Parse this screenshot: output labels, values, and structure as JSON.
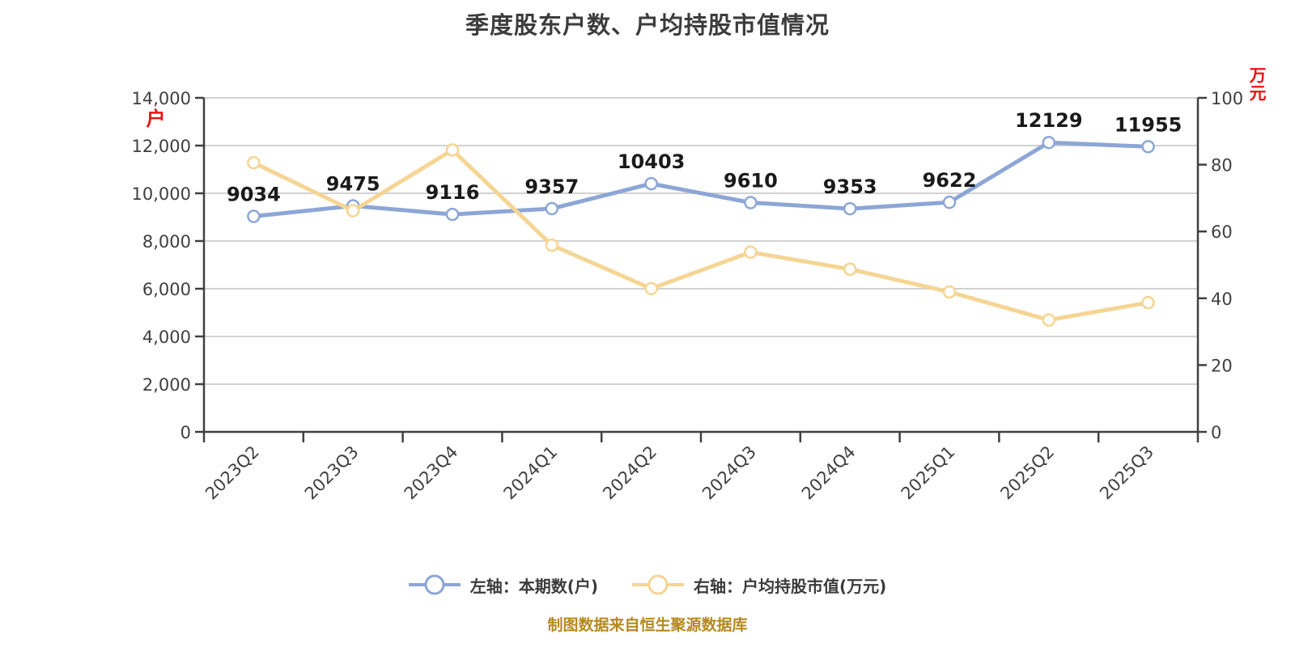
{
  "title": "季度股东户数、户均持股市值情况",
  "source_note": "制图数据来自恒生聚源数据库",
  "colors": {
    "series_left_blue": "#8CA6D6",
    "series_right_yellow": "#F5D593",
    "axis_unit_red": "#EE1111",
    "source_note_gold": "#B5891D",
    "axis_text": "#404040",
    "data_label": "#1A1A1A",
    "gridline": "#D2D2D2",
    "axis_line": "#404040",
    "marker_fill": "#FFFFFF"
  },
  "chart_data": {
    "type": "line",
    "title": "季度股东户数、户均持股市值情况",
    "categories": [
      "2023Q2",
      "2023Q3",
      "2023Q4",
      "2024Q1",
      "2024Q2",
      "2024Q3",
      "2024Q4",
      "2025Q1",
      "2025Q2",
      "2025Q3"
    ],
    "series": [
      {
        "name": "左轴：本期数(户)",
        "axis": "left",
        "color": "#8CA6D6",
        "marker": "circle-white",
        "data_labels": true,
        "values": [
          9034,
          9475,
          9116,
          9357,
          10403,
          9610,
          9353,
          9622,
          12129,
          11955
        ]
      },
      {
        "name": "右轴：户均持股市值(万元)",
        "axis": "right",
        "color": "#F5D593",
        "marker": "circle-white",
        "data_labels": false,
        "values": [
          80.6,
          66.2,
          84.4,
          55.9,
          42.9,
          53.8,
          48.7,
          41.9,
          33.5,
          38.7
        ]
      }
    ],
    "left_axis": {
      "unit": "户",
      "min": 0,
      "max": 14000,
      "tick_labels": [
        "0",
        "2,000",
        "4,000",
        "6,000",
        "8,000",
        "10,000",
        "12,000",
        "14,000"
      ]
    },
    "right_axis": {
      "unit": "万元",
      "min": 0,
      "max": 100,
      "tick_labels": [
        "0",
        "20",
        "40",
        "60",
        "80",
        "100"
      ]
    },
    "grid": true,
    "legend_position": "bottom",
    "x_label_rotation": -45
  }
}
